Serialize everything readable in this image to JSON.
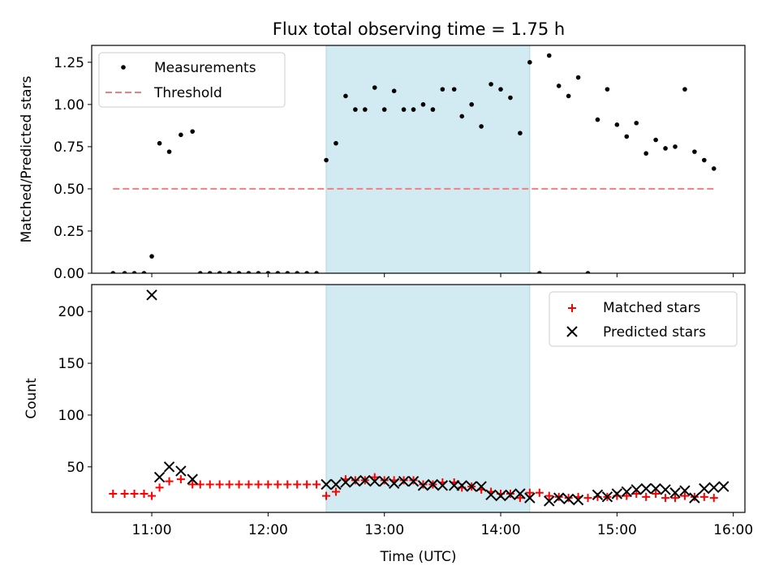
{
  "title": "Flux total observing time = 1.75 h",
  "colors": {
    "measurement": "#000000",
    "threshold": "#f08080",
    "matched": "#ff0000",
    "predicted": "#000000",
    "highlight": "#add8e6"
  },
  "chart_data": [
    {
      "type": "scatter",
      "ylabel": "Matched/Predicted stars",
      "xlim": [
        "10:29",
        "16:06"
      ],
      "ylim": [
        0,
        1.35
      ],
      "x_tick_labels": [
        "11:00",
        "12:00",
        "13:00",
        "14:00",
        "15:00",
        "16:00"
      ],
      "y_tick_labels": [
        "0.00",
        "0.25",
        "0.50",
        "0.75",
        "1.00",
        "1.25"
      ],
      "legend": {
        "position": "top-left",
        "entries": [
          "Measurements",
          "Threshold"
        ]
      },
      "shaded_region": {
        "start": "12:30",
        "end": "14:15"
      },
      "threshold": {
        "name": "Threshold",
        "value": 0.5,
        "x_start": "10:40",
        "x_end": "15:50",
        "style": "dashed"
      },
      "series": [
        {
          "name": "Measurements",
          "marker": "dot",
          "points": [
            [
              "10:40",
              0.0
            ],
            [
              "10:46",
              0.0
            ],
            [
              "10:51",
              0.0
            ],
            [
              "10:56",
              0.0
            ],
            [
              "11:00",
              0.1
            ],
            [
              "11:04",
              0.77
            ],
            [
              "11:09",
              0.72
            ],
            [
              "11:15",
              0.82
            ],
            [
              "11:21",
              0.84
            ],
            [
              "11:25",
              0.0
            ],
            [
              "11:30",
              0.0
            ],
            [
              "11:35",
              0.0
            ],
            [
              "11:40",
              0.0
            ],
            [
              "11:45",
              0.0
            ],
            [
              "11:50",
              0.0
            ],
            [
              "11:55",
              0.0
            ],
            [
              "12:00",
              0.0
            ],
            [
              "12:05",
              0.0
            ],
            [
              "12:10",
              0.0
            ],
            [
              "12:15",
              0.0
            ],
            [
              "12:20",
              0.0
            ],
            [
              "12:25",
              0.0
            ],
            [
              "12:30",
              0.67
            ],
            [
              "12:35",
              0.77
            ],
            [
              "12:40",
              1.05
            ],
            [
              "12:45",
              0.97
            ],
            [
              "12:50",
              0.97
            ],
            [
              "12:55",
              1.1
            ],
            [
              "13:00",
              0.97
            ],
            [
              "13:05",
              1.08
            ],
            [
              "13:10",
              0.97
            ],
            [
              "13:15",
              0.97
            ],
            [
              "13:20",
              1.0
            ],
            [
              "13:25",
              0.97
            ],
            [
              "13:30",
              1.09
            ],
            [
              "13:36",
              1.09
            ],
            [
              "13:40",
              0.93
            ],
            [
              "13:45",
              1.0
            ],
            [
              "13:50",
              0.87
            ],
            [
              "13:55",
              1.12
            ],
            [
              "14:00",
              1.09
            ],
            [
              "14:05",
              1.04
            ],
            [
              "14:10",
              0.83
            ],
            [
              "14:15",
              1.25
            ],
            [
              "14:20",
              0.0
            ],
            [
              "14:25",
              1.29
            ],
            [
              "14:30",
              1.11
            ],
            [
              "14:35",
              1.05
            ],
            [
              "14:40",
              1.16
            ],
            [
              "14:45",
              0.0
            ],
            [
              "14:50",
              0.91
            ],
            [
              "14:55",
              1.09
            ],
            [
              "15:00",
              0.88
            ],
            [
              "15:05",
              0.81
            ],
            [
              "15:10",
              0.89
            ],
            [
              "15:15",
              0.71
            ],
            [
              "15:20",
              0.79
            ],
            [
              "15:25",
              0.74
            ],
            [
              "15:30",
              0.75
            ],
            [
              "15:35",
              1.09
            ],
            [
              "15:40",
              0.72
            ],
            [
              "15:45",
              0.67
            ],
            [
              "15:50",
              0.62
            ]
          ]
        }
      ]
    },
    {
      "type": "scatter",
      "xlabel": "Time (UTC)",
      "ylabel": "Count",
      "xlim": [
        "10:29",
        "16:06"
      ],
      "ylim": [
        6,
        226
      ],
      "x_tick_labels": [
        "11:00",
        "12:00",
        "13:00",
        "14:00",
        "15:00",
        "16:00"
      ],
      "y_tick_labels": [
        "50",
        "100",
        "150",
        "200"
      ],
      "legend": {
        "position": "top-right",
        "entries": [
          "Matched stars",
          "Predicted stars"
        ]
      },
      "shaded_region": {
        "start": "12:30",
        "end": "14:15"
      },
      "series": [
        {
          "name": "Matched stars",
          "marker": "plus",
          "points": [
            [
              "10:40",
              24
            ],
            [
              "10:46",
              24
            ],
            [
              "10:51",
              24
            ],
            [
              "10:56",
              24
            ],
            [
              "11:00",
              22
            ],
            [
              "11:04",
              30
            ],
            [
              "11:09",
              36
            ],
            [
              "11:15",
              38
            ],
            [
              "11:21",
              33
            ],
            [
              "11:25",
              33
            ],
            [
              "11:30",
              33
            ],
            [
              "11:35",
              33
            ],
            [
              "11:40",
              33
            ],
            [
              "11:45",
              33
            ],
            [
              "11:50",
              33
            ],
            [
              "11:55",
              33
            ],
            [
              "12:00",
              33
            ],
            [
              "12:05",
              33
            ],
            [
              "12:10",
              33
            ],
            [
              "12:15",
              33
            ],
            [
              "12:20",
              33
            ],
            [
              "12:25",
              33
            ],
            [
              "12:30",
              22
            ],
            [
              "12:35",
              26
            ],
            [
              "12:40",
              38
            ],
            [
              "12:45",
              37
            ],
            [
              "12:50",
              37
            ],
            [
              "12:55",
              40
            ],
            [
              "13:00",
              37
            ],
            [
              "13:05",
              37
            ],
            [
              "13:10",
              37
            ],
            [
              "13:15",
              37
            ],
            [
              "13:20",
              33
            ],
            [
              "13:25",
              33
            ],
            [
              "13:30",
              35
            ],
            [
              "13:36",
              35
            ],
            [
              "13:40",
              30
            ],
            [
              "13:45",
              31
            ],
            [
              "13:50",
              28
            ],
            [
              "13:55",
              26
            ],
            [
              "14:00",
              24
            ],
            [
              "14:05",
              24
            ],
            [
              "14:10",
              20
            ],
            [
              "14:15",
              25
            ],
            [
              "14:20",
              25
            ],
            [
              "14:25",
              22
            ],
            [
              "14:30",
              21
            ],
            [
              "14:35",
              20
            ],
            [
              "14:40",
              21
            ],
            [
              "14:45",
              20
            ],
            [
              "14:50",
              21
            ],
            [
              "14:55",
              21
            ],
            [
              "15:00",
              22
            ],
            [
              "15:05",
              22
            ],
            [
              "15:10",
              24
            ],
            [
              "15:15",
              21
            ],
            [
              "15:20",
              24
            ],
            [
              "15:25",
              20
            ],
            [
              "15:30",
              20
            ],
            [
              "15:35",
              22
            ],
            [
              "15:40",
              21
            ],
            [
              "15:45",
              21
            ],
            [
              "15:50",
              20
            ]
          ]
        },
        {
          "name": "Predicted stars",
          "marker": "x",
          "points": [
            [
              "11:00",
              216
            ],
            [
              "11:04",
              40
            ],
            [
              "11:09",
              50
            ],
            [
              "11:15",
              46
            ],
            [
              "11:21",
              38
            ],
            [
              "12:30",
              33
            ],
            [
              "12:35",
              33
            ],
            [
              "12:40",
              35
            ],
            [
              "12:45",
              36
            ],
            [
              "12:50",
              37
            ],
            [
              "12:55",
              36
            ],
            [
              "13:00",
              36
            ],
            [
              "13:05",
              34
            ],
            [
              "13:10",
              36
            ],
            [
              "13:15",
              36
            ],
            [
              "13:20",
              32
            ],
            [
              "13:25",
              33
            ],
            [
              "13:30",
              32
            ],
            [
              "13:36",
              32
            ],
            [
              "13:40",
              32
            ],
            [
              "13:45",
              31
            ],
            [
              "13:50",
              31
            ],
            [
              "13:55",
              23
            ],
            [
              "14:00",
              22
            ],
            [
              "14:05",
              23
            ],
            [
              "14:10",
              24
            ],
            [
              "14:15",
              20
            ],
            [
              "14:25",
              17
            ],
            [
              "14:30",
              20
            ],
            [
              "14:35",
              19
            ],
            [
              "14:40",
              18
            ],
            [
              "14:50",
              23
            ],
            [
              "14:55",
              21
            ],
            [
              "15:00",
              24
            ],
            [
              "15:05",
              26
            ],
            [
              "15:10",
              28
            ],
            [
              "15:15",
              29
            ],
            [
              "15:20",
              29
            ],
            [
              "15:25",
              28
            ],
            [
              "15:30",
              25
            ],
            [
              "15:35",
              27
            ],
            [
              "15:40",
              20
            ],
            [
              "15:45",
              29
            ],
            [
              "15:50",
              30
            ],
            [
              "15:55",
              31
            ]
          ]
        }
      ]
    }
  ]
}
